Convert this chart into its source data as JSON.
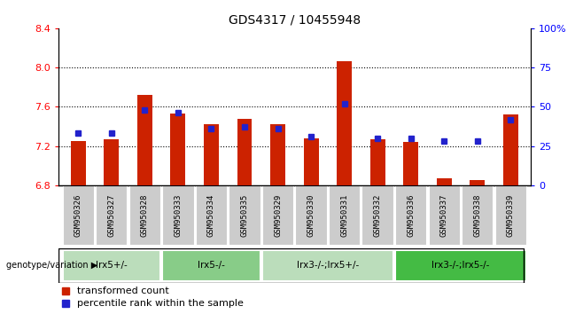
{
  "title": "GDS4317 / 10455948",
  "samples": [
    "GSM950326",
    "GSM950327",
    "GSM950328",
    "GSM950333",
    "GSM950334",
    "GSM950335",
    "GSM950329",
    "GSM950330",
    "GSM950331",
    "GSM950332",
    "GSM950336",
    "GSM950337",
    "GSM950338",
    "GSM950339"
  ],
  "transformed_count": [
    7.25,
    7.27,
    7.72,
    7.53,
    7.42,
    7.48,
    7.42,
    7.28,
    8.06,
    7.27,
    7.24,
    6.87,
    6.85,
    7.52
  ],
  "percentile_rank": [
    33,
    33,
    48,
    46,
    36,
    37,
    36,
    31,
    52,
    30,
    30,
    28,
    28,
    42
  ],
  "ylim_left": [
    6.8,
    8.4
  ],
  "ylim_right": [
    0,
    100
  ],
  "yticks_left": [
    6.8,
    7.2,
    7.6,
    8.0,
    8.4
  ],
  "yticks_right": [
    0,
    25,
    50,
    75,
    100
  ],
  "bar_color": "#cc2200",
  "dot_color": "#2222cc",
  "groups": [
    {
      "label": "lrx5+/-",
      "start": 0,
      "end": 2,
      "color": "#bbddbb"
    },
    {
      "label": "lrx5-/-",
      "start": 3,
      "end": 5,
      "color": "#88cc88"
    },
    {
      "label": "lrx3-/-;lrx5+/-",
      "start": 6,
      "end": 9,
      "color": "#bbddbb"
    },
    {
      "label": "lrx3-/-;lrx5-/-",
      "start": 10,
      "end": 13,
      "color": "#44bb44"
    }
  ],
  "legend_red": "transformed count",
  "legend_blue": "percentile rank within the sample",
  "base_value": 6.8,
  "bar_width": 0.45
}
